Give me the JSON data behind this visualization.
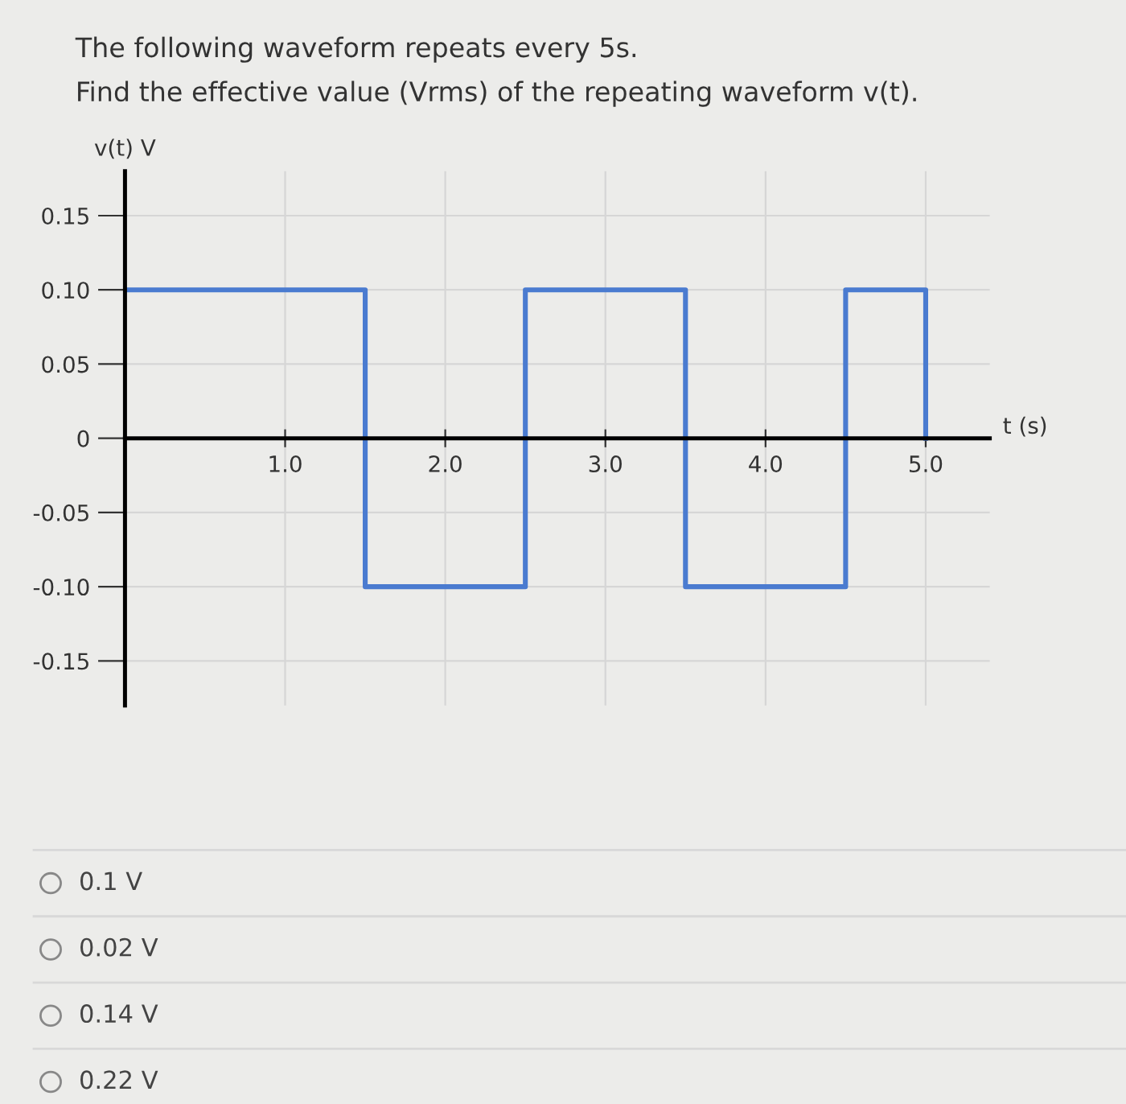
{
  "chart_data": {
    "type": "step",
    "title": "The following waveform repeats every 5s.",
    "subtitle": "Find the effective value (Vrms) of the repeating waveform v(t).",
    "xlabel": "t (s)",
    "ylabel": "v(t) V",
    "x": [
      0,
      1.5,
      2.5,
      3.5,
      4.5,
      5.0
    ],
    "series": [
      {
        "color": "#4a7bd0",
        "values": [
          0.1,
          -0.1,
          0.1,
          -0.1,
          0.1,
          0
        ]
      }
    ],
    "xlim": [
      0,
      5.4
    ],
    "ylim": [
      -0.18,
      0.18
    ],
    "xticks": [
      {
        "value": 1,
        "label": "1.0"
      },
      {
        "value": 2,
        "label": "2.0"
      },
      {
        "value": 3,
        "label": "3.0"
      },
      {
        "value": 4,
        "label": "4.0"
      },
      {
        "value": 5,
        "label": "5.0"
      }
    ],
    "yticks": [
      0.15,
      {
        "value": 0.1,
        "label": "0.10"
      },
      0.05,
      0,
      -0.05,
      {
        "value": -0.1,
        "label": "-0.10"
      },
      -0.15
    ],
    "grid": true,
    "line_style": "solid",
    "marker": "none",
    "annotations": [
      "0.1 V",
      "0.02 V",
      "0.14 V",
      "0.22 V"
    ]
  }
}
